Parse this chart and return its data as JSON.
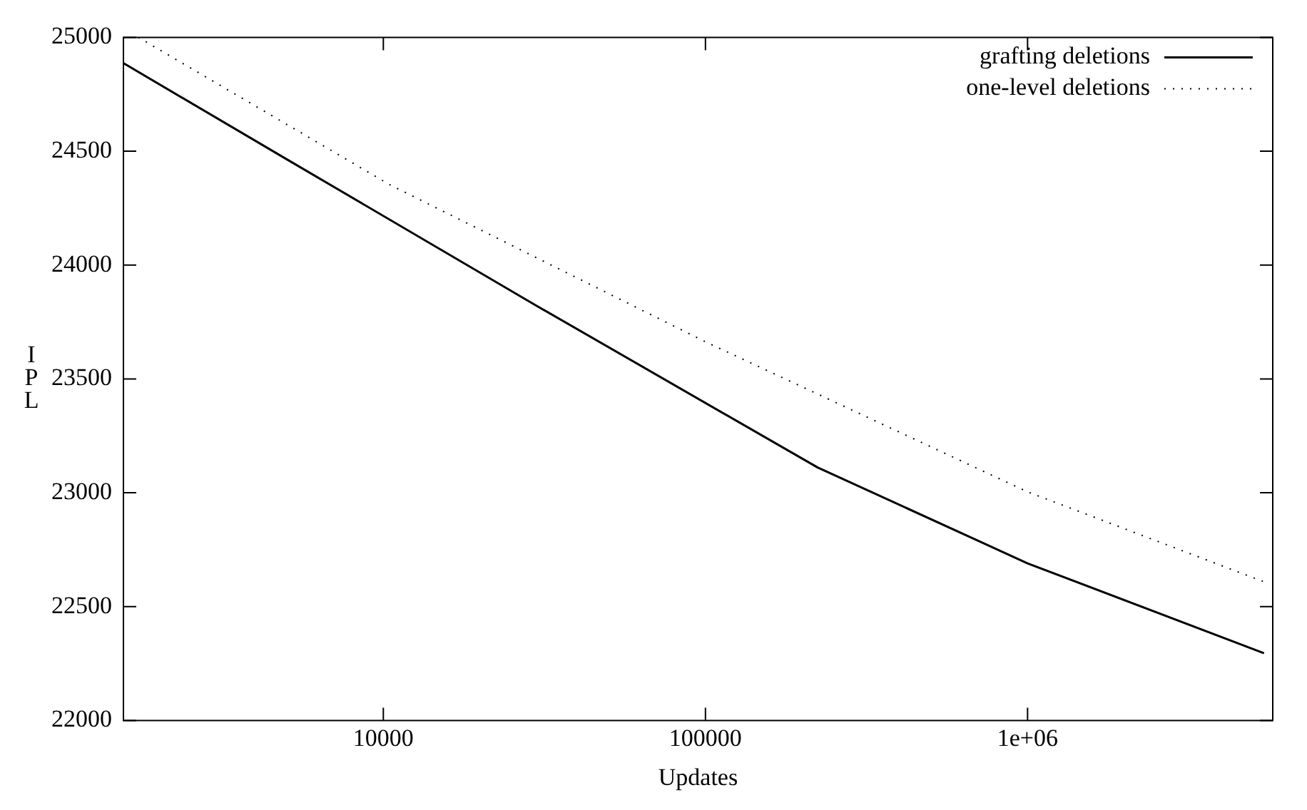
{
  "chart_data": {
    "type": "line",
    "xlabel": "Updates",
    "ylabel": "IPL",
    "log": "x",
    "xlim": [
      1560,
      5770000
    ],
    "ylim": [
      22000,
      25000
    ],
    "xticks": [
      {
        "value": 10000,
        "label": "10000"
      },
      {
        "value": 100000,
        "label": "100000"
      },
      {
        "value": 1000000,
        "label": "1e+06"
      }
    ],
    "yticks": [
      22000,
      22500,
      23000,
      23500,
      24000,
      24500,
      25000
    ],
    "grid": false,
    "legend": "top right",
    "marker": "none",
    "series": [
      {
        "name": "grafting deletions",
        "color": "#000000",
        "line_style": "solid",
        "x": [
          1560,
          4980,
          30000,
          223000,
          1000000,
          5420000
        ],
        "values": [
          24887,
          24467,
          23820,
          23111,
          22690,
          22295
        ]
      },
      {
        "name": "one-level deletions",
        "color": "#000000",
        "line_style": "dotted",
        "x": [
          1735,
          10430,
          100000,
          1000000,
          5420000
        ],
        "values": [
          25000,
          24354,
          23663,
          23004,
          22609
        ]
      }
    ]
  }
}
